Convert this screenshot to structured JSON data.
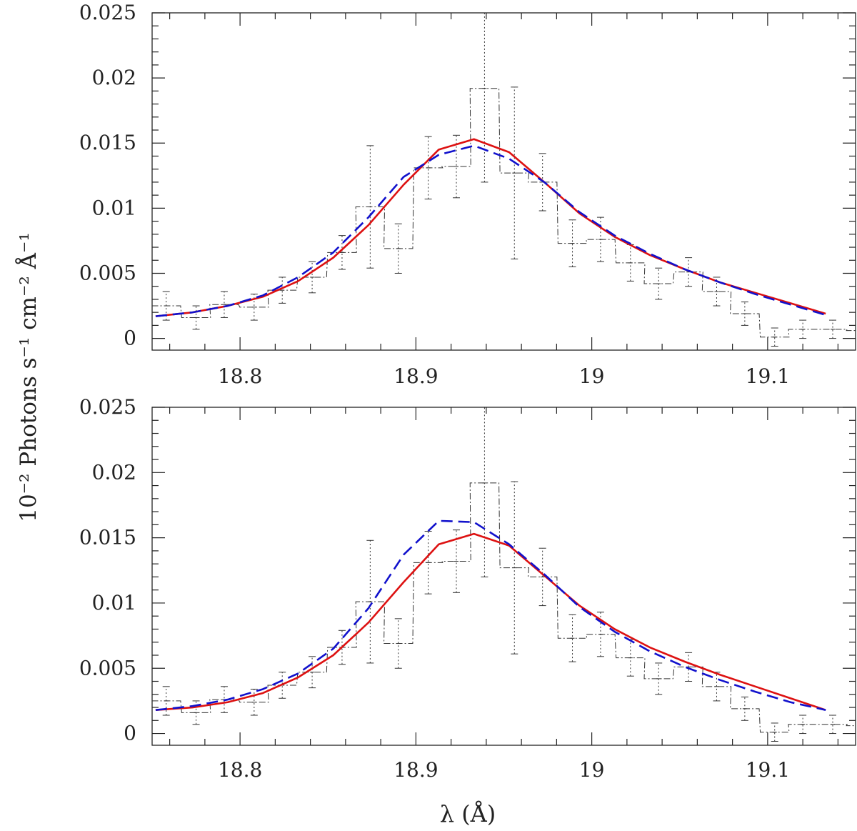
{
  "ylabel": "10⁻² Photons s⁻¹ cm⁻² Å⁻¹",
  "xlabel": "λ (Å)",
  "colors": {
    "data": "#333333",
    "model_a": "#dd1111",
    "model_b": "#1111cc",
    "axes": "#222222"
  },
  "chart_data": [
    {
      "type": "line",
      "panel": "top",
      "xlim": [
        18.75,
        19.15
      ],
      "ylim": [
        -0.0009,
        0.025
      ],
      "xticks": [
        18.8,
        18.9,
        19.0,
        19.1
      ],
      "xtick_labels": [
        "18.8",
        "18.9",
        "19",
        "19.1"
      ],
      "yticks": [
        0,
        0.005,
        0.01,
        0.015,
        0.02,
        0.025
      ],
      "ytick_labels": [
        "0",
        "0.005",
        "0.01",
        "0.015",
        "0.02",
        "0.025"
      ],
      "data_histogram": {
        "centers": [
          18.758,
          18.775,
          18.791,
          18.808,
          18.824,
          18.841,
          18.858,
          18.874,
          18.89,
          18.907,
          18.923,
          18.939,
          18.956,
          18.972,
          18.989,
          19.005,
          19.022,
          19.038,
          19.055,
          19.071,
          19.087,
          19.104,
          19.12,
          19.137,
          19.153
        ],
        "values": [
          0.0025,
          0.0016,
          0.0026,
          0.0024,
          0.0037,
          0.0047,
          0.0066,
          0.0101,
          0.0069,
          0.0131,
          0.0132,
          0.0192,
          0.0127,
          0.012,
          0.0073,
          0.0076,
          0.0058,
          0.0042,
          0.0051,
          0.0036,
          0.0019,
          0.0001,
          0.0007,
          0.0007,
          0.0006
        ],
        "errors": [
          0.0011,
          0.0009,
          0.001,
          0.001,
          0.001,
          0.0012,
          0.0013,
          0.0047,
          0.0019,
          0.0024,
          0.0024,
          0.0072,
          0.0066,
          0.0022,
          0.0018,
          0.0017,
          0.0014,
          0.0012,
          0.0011,
          0.0011,
          0.0009,
          0.0007,
          0.0007,
          0.0007,
          0.0007
        ]
      },
      "series": [
        {
          "color": "#dd1111",
          "dash": "solid",
          "x": [
            18.752,
            18.773,
            18.793,
            18.813,
            18.833,
            18.853,
            18.873,
            18.893,
            18.913,
            18.933,
            18.953,
            18.973,
            18.993,
            19.013,
            19.033,
            19.053,
            19.073,
            19.093,
            19.113,
            19.133
          ],
          "y": [
            0.0017,
            0.002,
            0.0025,
            0.0032,
            0.0044,
            0.0062,
            0.0087,
            0.0118,
            0.0145,
            0.0153,
            0.0143,
            0.012,
            0.0096,
            0.0078,
            0.0064,
            0.0053,
            0.0043,
            0.0035,
            0.0027,
            0.0019
          ]
        },
        {
          "color": "#1111cc",
          "dash": "dashed",
          "x": [
            18.752,
            18.773,
            18.793,
            18.813,
            18.833,
            18.853,
            18.873,
            18.893,
            18.913,
            18.933,
            18.953,
            18.973,
            18.993,
            19.013,
            19.033,
            19.053,
            19.073,
            19.093,
            19.113,
            19.133
          ],
          "y": [
            0.0017,
            0.002,
            0.0025,
            0.0033,
            0.0047,
            0.0066,
            0.0093,
            0.0124,
            0.0141,
            0.0148,
            0.0138,
            0.012,
            0.0097,
            0.0079,
            0.0065,
            0.0053,
            0.0043,
            0.0034,
            0.0026,
            0.0018
          ]
        }
      ]
    },
    {
      "type": "line",
      "panel": "bottom",
      "xlim": [
        18.75,
        19.15
      ],
      "ylim": [
        -0.0009,
        0.025
      ],
      "xticks": [
        18.8,
        18.9,
        19.0,
        19.1
      ],
      "xtick_labels": [
        "18.8",
        "18.9",
        "19",
        "19.1"
      ],
      "yticks": [
        0,
        0.005,
        0.01,
        0.015,
        0.02,
        0.025
      ],
      "ytick_labels": [
        "0",
        "0.005",
        "0.01",
        "0.015",
        "0.02",
        "0.025"
      ],
      "data_histogram": {
        "centers": [
          18.758,
          18.775,
          18.791,
          18.808,
          18.824,
          18.841,
          18.858,
          18.874,
          18.89,
          18.907,
          18.923,
          18.939,
          18.956,
          18.972,
          18.989,
          19.005,
          19.022,
          19.038,
          19.055,
          19.071,
          19.087,
          19.104,
          19.12,
          19.137,
          19.153
        ],
        "values": [
          0.0025,
          0.0016,
          0.0026,
          0.0024,
          0.0037,
          0.0047,
          0.0066,
          0.0101,
          0.0069,
          0.0131,
          0.0132,
          0.0192,
          0.0127,
          0.012,
          0.0073,
          0.0076,
          0.0058,
          0.0042,
          0.0051,
          0.0036,
          0.0019,
          0.0001,
          0.0007,
          0.0007,
          0.0006
        ],
        "errors": [
          0.0011,
          0.0009,
          0.001,
          0.001,
          0.001,
          0.0012,
          0.0013,
          0.0047,
          0.0019,
          0.0024,
          0.0024,
          0.0072,
          0.0066,
          0.0022,
          0.0018,
          0.0017,
          0.0014,
          0.0012,
          0.0011,
          0.0011,
          0.0009,
          0.0007,
          0.0007,
          0.0007,
          0.0007
        ]
      },
      "series": [
        {
          "color": "#dd1111",
          "dash": "solid",
          "x": [
            18.752,
            18.773,
            18.793,
            18.813,
            18.833,
            18.853,
            18.873,
            18.893,
            18.913,
            18.933,
            18.953,
            18.973,
            18.993,
            19.013,
            19.033,
            19.053,
            19.073,
            19.093,
            19.113,
            19.133
          ],
          "y": [
            0.0018,
            0.002,
            0.0024,
            0.0031,
            0.0043,
            0.006,
            0.0085,
            0.0116,
            0.0145,
            0.0153,
            0.0144,
            0.0121,
            0.0098,
            0.008,
            0.0066,
            0.0055,
            0.0045,
            0.0036,
            0.0027,
            0.0018
          ]
        },
        {
          "color": "#1111cc",
          "dash": "dashed",
          "x": [
            18.752,
            18.773,
            18.793,
            18.813,
            18.833,
            18.853,
            18.873,
            18.893,
            18.913,
            18.933,
            18.953,
            18.973,
            18.993,
            19.013,
            19.033,
            19.053,
            19.073,
            19.093,
            19.113,
            19.133
          ],
          "y": [
            0.0018,
            0.0021,
            0.0026,
            0.0034,
            0.0046,
            0.0065,
            0.0096,
            0.0137,
            0.0163,
            0.0162,
            0.0145,
            0.0122,
            0.0097,
            0.0078,
            0.0063,
            0.0051,
            0.0041,
            0.0032,
            0.0024,
            0.0018
          ]
        }
      ]
    }
  ]
}
